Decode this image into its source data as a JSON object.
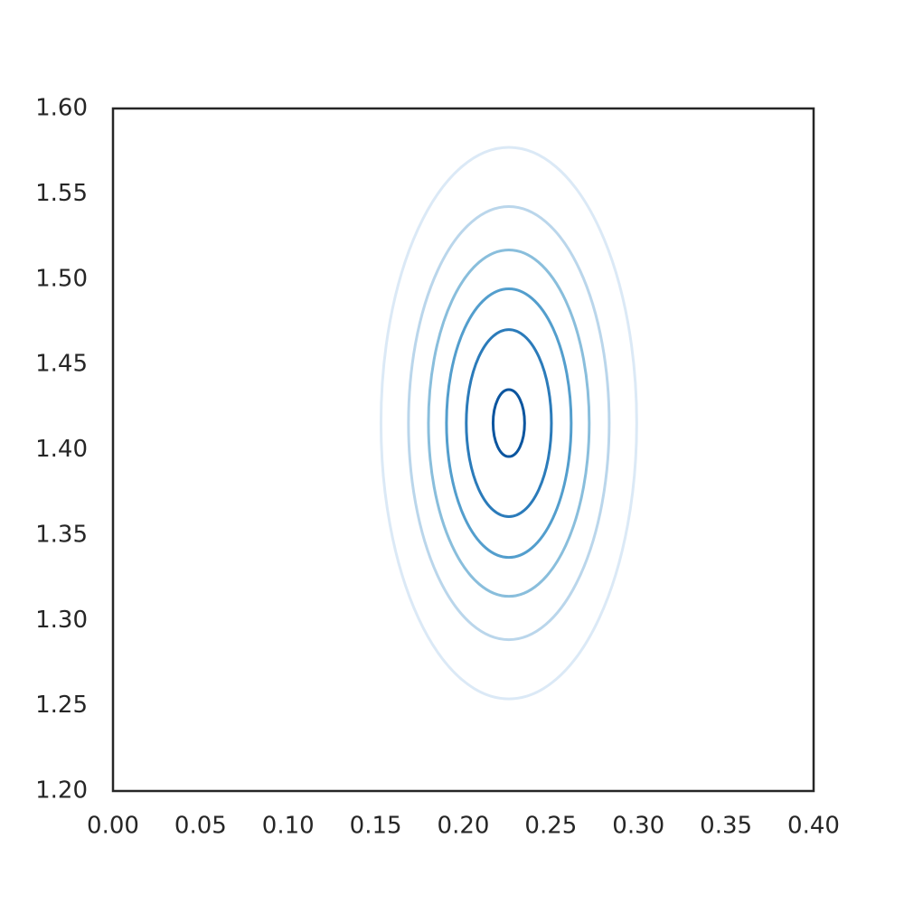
{
  "chart_data": {
    "type": "contour",
    "xlim": [
      0,
      0.4
    ],
    "ylim": [
      1.2,
      1.6
    ],
    "xticks": [
      {
        "value": 0,
        "label": "0.00"
      },
      0.05,
      {
        "value": 0.1,
        "label": "0.10"
      },
      0.15,
      {
        "value": 0.2,
        "label": "0.20"
      },
      0.25,
      {
        "value": 0.3,
        "label": "0.30"
      },
      0.35,
      {
        "value": 0.4,
        "label": "0.40"
      }
    ],
    "yticks": [
      {
        "value": 1.2,
        "label": "1.20"
      },
      1.25,
      {
        "value": 1.3,
        "label": "1.30"
      },
      1.35,
      {
        "value": 1.4,
        "label": "1.40"
      },
      1.45,
      {
        "value": 1.5,
        "label": "1.50"
      },
      1.55,
      {
        "value": 1.6,
        "label": "1.60"
      }
    ],
    "grid": false,
    "contours": [
      {
        "color": "#dbe9f6",
        "x": 0.226,
        "y": 1.4156,
        "rx": 0.073,
        "ry": 0.1616
      },
      {
        "color": "#bad6eb",
        "x": 0.226,
        "y": 1.4156,
        "rx": 0.0573,
        "ry": 0.1269
      },
      {
        "color": "#89bedc",
        "x": 0.226,
        "y": 1.4156,
        "rx": 0.0459,
        "ry": 0.1015
      },
      {
        "color": "#539ecd",
        "x": 0.226,
        "y": 1.4156,
        "rx": 0.0356,
        "ry": 0.0787
      },
      {
        "color": "#2b7bba",
        "x": 0.226,
        "y": 1.4156,
        "rx": 0.0243,
        "ry": 0.0548
      },
      {
        "color": "#0b559f",
        "x": 0.226,
        "y": 1.4156,
        "rx": 0.009,
        "ry": 0.0196
      }
    ]
  }
}
